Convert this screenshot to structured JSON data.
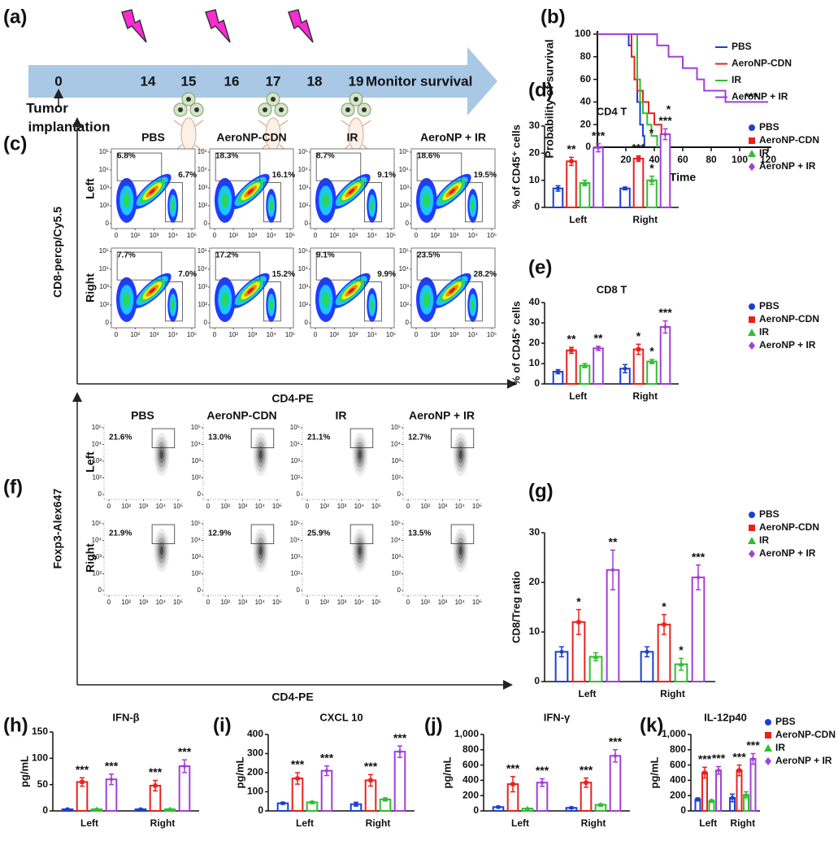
{
  "timeline": {
    "panel": "(a)",
    "days": [
      0,
      14,
      15,
      16,
      17,
      18,
      19
    ],
    "end_label": "Monitor survival",
    "start_label": [
      "Tumor",
      "implantation"
    ]
  },
  "chart_data": [
    {
      "type": "step",
      "panel": "(b)",
      "xlabel": "Time",
      "ylabel": "Probability of survival",
      "xlim": [
        0,
        120
      ],
      "xticks": [
        0,
        20,
        40,
        60,
        80,
        100,
        120
      ],
      "ylim": [
        0,
        100
      ],
      "yticks": [
        0,
        20,
        40,
        60,
        80,
        100
      ],
      "series": [
        {
          "name": "PBS",
          "color": "#1c3fd2",
          "x": [
            0,
            22,
            24,
            26,
            28,
            30,
            32,
            33
          ],
          "values": [
            100,
            90,
            80,
            60,
            40,
            20,
            10,
            0
          ]
        },
        {
          "name": "AeroNP-CDN",
          "color": "#e8221e",
          "x": [
            0,
            24,
            26,
            28,
            32,
            36,
            40,
            45,
            50
          ],
          "values": [
            100,
            80,
            60,
            50,
            40,
            30,
            20,
            10,
            0
          ]
        },
        {
          "name": "IR",
          "color": "#2fbf2f",
          "x": [
            0,
            28,
            30,
            32,
            35,
            38,
            42
          ],
          "values": [
            100,
            60,
            40,
            30,
            20,
            10,
            0
          ]
        },
        {
          "name": "AeroNP + IR",
          "color": "#a23fd8",
          "x": [
            0,
            42,
            50,
            60,
            70,
            75,
            90,
            120
          ],
          "values": [
            100,
            90,
            80,
            70,
            60,
            50,
            40,
            40
          ]
        }
      ],
      "annotations": [
        {
          "text": "*",
          "x": 38,
          "y": 12
        },
        {
          "text": "*",
          "x": 50,
          "y": 33
        },
        {
          "text": "***",
          "x": 108,
          "y": 44
        }
      ]
    },
    {
      "type": "flow",
      "panel": "(c)",
      "colormap": "jet",
      "xlabel": "CD4-PE",
      "ylabel": "CD8-percp/Cy5.5",
      "columns": [
        "PBS",
        "AeroNP-CDN",
        "IR",
        "AeroNP + IR"
      ],
      "rows": [
        "Left",
        "Right"
      ],
      "xticks": [
        0,
        {
          "value": 100,
          "label": "10²"
        },
        {
          "value": 1000,
          "label": "10³"
        },
        {
          "value": 10000,
          "label": "10⁴"
        },
        {
          "value": 100000,
          "label": "10⁵"
        }
      ],
      "yticks": [
        0,
        {
          "value": 100,
          "label": "10²"
        },
        {
          "value": 1000,
          "label": "10³"
        },
        {
          "value": 10000,
          "label": "10⁴"
        },
        {
          "value": 100000,
          "label": "10⁵"
        }
      ],
      "values": [
        [
          [
            6.8,
            6.7
          ],
          [
            18.3,
            16.1
          ],
          [
            8.7,
            9.1
          ],
          [
            18.6,
            19.5
          ]
        ],
        [
          [
            7.7,
            7.0
          ],
          [
            17.2,
            15.2
          ],
          [
            9.1,
            9.9
          ],
          [
            23.5,
            28.2
          ]
        ]
      ],
      "value_labels": [
        [
          [
            "6.8%",
            "6.7%"
          ],
          [
            "18.3%",
            "16.1%"
          ],
          [
            "8.7%",
            "9.1%"
          ],
          [
            "18.6%",
            "19.5%"
          ]
        ],
        [
          [
            "7.7%",
            "7.0%"
          ],
          [
            "17.2%",
            "15.2%"
          ],
          [
            "9.1%",
            "9.9%"
          ],
          [
            "23.5%",
            "28.2%"
          ]
        ]
      ]
    },
    {
      "type": "bar",
      "panel": "(d)",
      "title": "CD4 T",
      "ylabel": "% of CD45⁺ cells",
      "legend": true,
      "categories": [
        "Left",
        "Right"
      ],
      "ylim": [
        0,
        30
      ],
      "yticks": [
        0,
        10,
        20,
        30
      ],
      "series": [
        {
          "name": "PBS",
          "color": "#1c3fd2",
          "values": [
            7,
            7
          ],
          "errors": [
            1,
            0.5
          ],
          "sig": [
            null,
            null
          ]
        },
        {
          "name": "AeroNP-CDN",
          "color": "#e8221e",
          "values": [
            17,
            18
          ],
          "errors": [
            1.5,
            1
          ],
          "sig": [
            "**",
            "***"
          ]
        },
        {
          "name": "IR",
          "color": "#2fbf2f",
          "values": [
            9,
            10
          ],
          "errors": [
            1,
            1.5
          ],
          "sig": [
            null,
            "*"
          ]
        },
        {
          "name": "AeroNP + IR",
          "color": "#a23fd8",
          "values": [
            22,
            27
          ],
          "errors": [
            1.5,
            2
          ],
          "sig": [
            "***",
            "***"
          ]
        }
      ]
    },
    {
      "type": "bar",
      "panel": "(e)",
      "title": "CD8 T",
      "ylabel": "% of CD45⁺ cells",
      "legend": true,
      "categories": [
        "Left",
        "Right"
      ],
      "ylim": [
        0,
        40
      ],
      "yticks": [
        0,
        10,
        20,
        30,
        40
      ],
      "series": [
        {
          "name": "PBS",
          "color": "#1c3fd2",
          "values": [
            6,
            7.5
          ],
          "errors": [
            1,
            2
          ],
          "sig": [
            null,
            null
          ]
        },
        {
          "name": "AeroNP-CDN",
          "color": "#e8221e",
          "values": [
            16.5,
            17
          ],
          "errors": [
            1.5,
            2.5
          ],
          "sig": [
            "**",
            "*"
          ]
        },
        {
          "name": "IR",
          "color": "#2fbf2f",
          "values": [
            9,
            11
          ],
          "errors": [
            1,
            1
          ],
          "sig": [
            null,
            "*"
          ]
        },
        {
          "name": "AeroNP + IR",
          "color": "#a23fd8",
          "values": [
            17.5,
            28
          ],
          "errors": [
            1,
            3
          ],
          "sig": [
            "**",
            "***"
          ]
        }
      ]
    },
    {
      "type": "flow",
      "panel": "(f)",
      "colormap": "gray",
      "xlabel": "CD4-PE",
      "ylabel": "Foxp3-Alex647",
      "columns": [
        "PBS",
        "AeroNP-CDN",
        "IR",
        "AeroNP + IR"
      ],
      "rows": [
        "Left",
        "Right"
      ],
      "xticks": [
        0,
        {
          "value": 100,
          "label": "10²"
        },
        {
          "value": 1000,
          "label": "10³"
        },
        {
          "value": 10000,
          "label": "10⁴"
        },
        {
          "value": 100000,
          "label": "10⁵"
        }
      ],
      "yticks": [
        0,
        {
          "value": 100,
          "label": "10²"
        },
        {
          "value": 1000,
          "label": "10³"
        },
        {
          "value": 10000,
          "label": "10⁴"
        },
        {
          "value": 100000,
          "label": "10⁵"
        }
      ],
      "values": [
        [
          21.6,
          13.0,
          21.1,
          12.7
        ],
        [
          21.9,
          12.9,
          25.9,
          13.5
        ]
      ],
      "value_labels": [
        [
          "21.6%",
          "13.0%",
          "21.1%",
          "12.7%"
        ],
        [
          "21.9%",
          "12.9%",
          "25.9%",
          "13.5%"
        ]
      ]
    },
    {
      "type": "bar",
      "panel": "(g)",
      "ylabel": "CD8/Treg ratio",
      "legend": true,
      "categories": [
        "Left",
        "Right"
      ],
      "ylim": [
        0,
        30
      ],
      "yticks": [
        0,
        10,
        20,
        30
      ],
      "series": [
        {
          "name": "PBS",
          "color": "#1c3fd2",
          "values": [
            6,
            6
          ],
          "errors": [
            1,
            1
          ],
          "sig": [
            null,
            null
          ]
        },
        {
          "name": "AeroNP-CDN",
          "color": "#e8221e",
          "values": [
            12,
            11.5
          ],
          "errors": [
            2.5,
            2
          ],
          "sig": [
            "*",
            "*"
          ]
        },
        {
          "name": "IR",
          "color": "#2fbf2f",
          "values": [
            5,
            3.5
          ],
          "errors": [
            0.8,
            1.2
          ],
          "sig": [
            null,
            "*"
          ]
        },
        {
          "name": "AeroNP + IR",
          "color": "#a23fd8",
          "values": [
            22.5,
            21
          ],
          "errors": [
            4,
            2.5
          ],
          "sig": [
            "**",
            "***"
          ]
        }
      ]
    },
    {
      "type": "bar",
      "panel": "(h)",
      "title": "IFN-β",
      "ylabel": "pg/mL",
      "legend": false,
      "categories": [
        "Left",
        "Right"
      ],
      "ylim": [
        0,
        150
      ],
      "yticks": [
        0,
        50,
        100,
        150
      ],
      "series": [
        {
          "color": "#1c3fd2",
          "values": [
            3,
            3
          ],
          "errors": [
            1,
            1
          ],
          "sig": [
            null,
            null
          ]
        },
        {
          "color": "#e8221e",
          "values": [
            55,
            48
          ],
          "errors": [
            8,
            10
          ],
          "sig": [
            "***",
            "***"
          ]
        },
        {
          "color": "#2fbf2f",
          "values": [
            3,
            3
          ],
          "errors": [
            1,
            1
          ],
          "sig": [
            null,
            null
          ]
        },
        {
          "color": "#a23fd8",
          "values": [
            60,
            85
          ],
          "errors": [
            10,
            12
          ],
          "sig": [
            "***",
            "***"
          ]
        }
      ]
    },
    {
      "type": "bar",
      "panel": "(i)",
      "title": "CXCL 10",
      "ylabel": "pg/mL",
      "legend": false,
      "categories": [
        "Left",
        "Right"
      ],
      "ylim": [
        0,
        400
      ],
      "yticks": [
        0,
        100,
        200,
        300,
        400
      ],
      "series": [
        {
          "color": "#1c3fd2",
          "values": [
            40,
            35
          ],
          "errors": [
            5,
            10
          ],
          "sig": [
            null,
            null
          ]
        },
        {
          "color": "#e8221e",
          "values": [
            170,
            160
          ],
          "errors": [
            30,
            30
          ],
          "sig": [
            "***",
            "***"
          ]
        },
        {
          "color": "#2fbf2f",
          "values": [
            45,
            60
          ],
          "errors": [
            5,
            8
          ],
          "sig": [
            null,
            null
          ]
        },
        {
          "color": "#a23fd8",
          "values": [
            210,
            310
          ],
          "errors": [
            25,
            30
          ],
          "sig": [
            "***",
            "***"
          ]
        }
      ]
    },
    {
      "type": "bar",
      "panel": "(j)",
      "title": "IFN-γ",
      "ylabel": "pg/mL",
      "legend": false,
      "categories": [
        "Left",
        "Right"
      ],
      "ylim": [
        0,
        1000
      ],
      "yticks": [
        0,
        200,
        400,
        600,
        800,
        {
          "value": 1000,
          "label": "1,000"
        }
      ],
      "series": [
        {
          "color": "#1c3fd2",
          "values": [
            50,
            40
          ],
          "errors": [
            10,
            10
          ],
          "sig": [
            null,
            null
          ]
        },
        {
          "color": "#e8221e",
          "values": [
            350,
            370
          ],
          "errors": [
            100,
            60
          ],
          "sig": [
            "***",
            "***"
          ]
        },
        {
          "color": "#2fbf2f",
          "values": [
            30,
            80
          ],
          "errors": [
            5,
            10
          ],
          "sig": [
            null,
            null
          ]
        },
        {
          "color": "#a23fd8",
          "values": [
            370,
            720
          ],
          "errors": [
            50,
            80
          ],
          "sig": [
            "***",
            "***"
          ]
        }
      ]
    },
    {
      "type": "bar",
      "panel": "(k)",
      "title": "IL-12p40",
      "ylabel": "pg/mL",
      "legend": true,
      "categories": [
        "Left",
        "Right"
      ],
      "ylim": [
        0,
        1000
      ],
      "yticks": [
        0,
        200,
        400,
        600,
        800,
        {
          "value": 1000,
          "label": "1,000"
        }
      ],
      "series": [
        {
          "name": "PBS",
          "color": "#1c3fd2",
          "values": [
            150,
            170
          ],
          "errors": [
            20,
            50
          ],
          "sig": [
            null,
            null
          ]
        },
        {
          "name": "AeroNP-CDN",
          "color": "#e8221e",
          "values": [
            500,
            530
          ],
          "errors": [
            70,
            70
          ],
          "sig": [
            "***",
            "***"
          ]
        },
        {
          "name": "IR",
          "color": "#2fbf2f",
          "values": [
            130,
            210
          ],
          "errors": [
            15,
            40
          ],
          "sig": [
            null,
            null
          ]
        },
        {
          "name": "AeroNP + IR",
          "color": "#a23fd8",
          "values": [
            530,
            680
          ],
          "errors": [
            50,
            70
          ],
          "sig": [
            "***",
            "***"
          ]
        }
      ]
    }
  ]
}
